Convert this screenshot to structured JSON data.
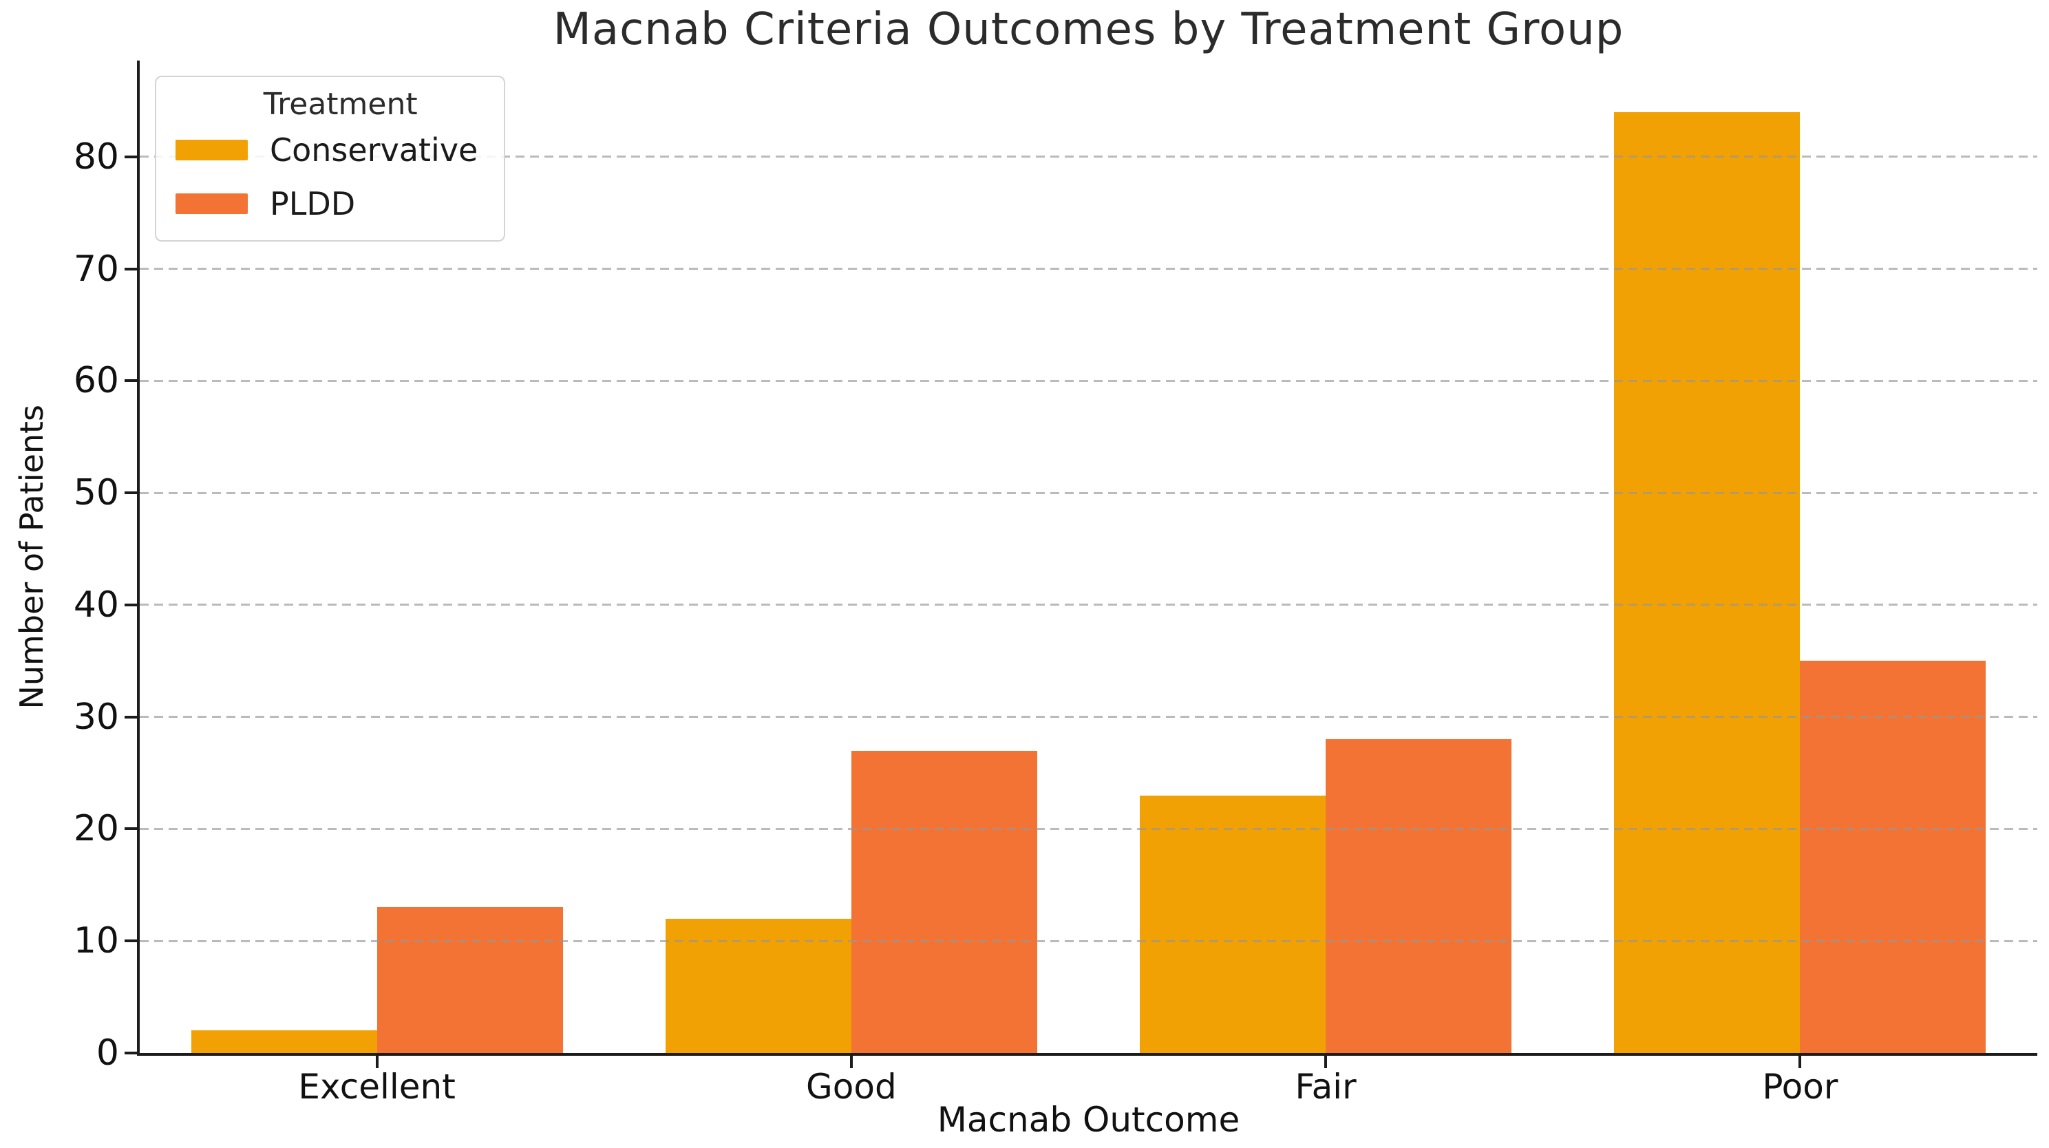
{
  "chart_data": {
    "type": "bar",
    "title": "Macnab Criteria Outcomes by Treatment Group",
    "xlabel": "Macnab Outcome",
    "ylabel": "Number of Patients",
    "categories": [
      "Excellent",
      "Good",
      "Fair",
      "Poor"
    ],
    "series": [
      {
        "name": "Conservative",
        "color": "#F2A104",
        "values": [
          2,
          12,
          23,
          84
        ]
      },
      {
        "name": "PLDD",
        "color": "#F37334",
        "values": [
          13,
          27,
          28,
          35
        ]
      }
    ],
    "legend": {
      "title": "Treatment",
      "position": "upper left"
    },
    "ylim": [
      0,
      88.6
    ],
    "yticks": [
      0,
      10,
      20,
      30,
      40,
      50,
      60,
      70,
      80
    ],
    "grid": "horizontal-dashed",
    "colors": {
      "conservative": "#F2A104",
      "pldd": "#F37334",
      "gridline": "#969696",
      "spine": "#1c1c1c",
      "title_text": "#2b2b2b",
      "tick_text": "#111111"
    }
  }
}
